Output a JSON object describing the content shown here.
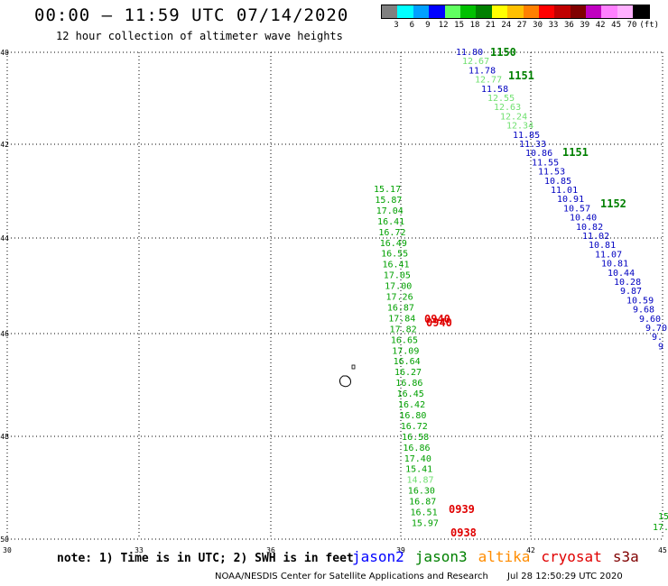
{
  "header": {
    "title": "00:00 – 11:59 UTC 07/14/2020",
    "subtitle": "12 hour collection of altimeter wave heights"
  },
  "color_scale": {
    "colors": [
      "#808080",
      "#00ffff",
      "#00a0ff",
      "#0000ff",
      "#60ff60",
      "#00c000",
      "#008000",
      "#ffff00",
      "#ffc000",
      "#ff8000",
      "#ff0000",
      "#c00000",
      "#800000",
      "#c000c0",
      "#ff80ff",
      "#ffb0ff",
      "#000000"
    ],
    "labels": [
      "3",
      "6",
      "9",
      "12",
      "15",
      "18",
      "21",
      "24",
      "27",
      "30",
      "33",
      "36",
      "39",
      "42",
      "45",
      "70",
      "(ft)"
    ]
  },
  "map": {
    "lat_labels": [
      "-40",
      "-42",
      "-44",
      "-46",
      "-48",
      "-50"
    ],
    "lon_labels": [
      "30",
      "33",
      "36",
      "39",
      "42",
      "45"
    ],
    "tracks": [
      {
        "satellite": "jason3",
        "color": "#00a000",
        "light": "#70e070",
        "time_labels": [
          {
            "text": "1150"
          },
          {
            "text": "1151"
          },
          {
            "text": "1151"
          },
          {
            "text": "1152"
          }
        ]
      },
      {
        "satellite": "jason2",
        "color": "#0000c0"
      },
      {
        "satellite": "s3a",
        "color": "#e00000",
        "time_labels": [
          {
            "text": "0940"
          },
          {
            "text": "0940"
          },
          {
            "text": "0939"
          },
          {
            "text": "0938"
          }
        ]
      }
    ],
    "east_track_values": [
      {
        "v": "11.80",
        "c": "b"
      },
      {
        "v": "12.67",
        "c": "l"
      },
      {
        "v": "11.78",
        "c": "b"
      },
      {
        "v": "12.77",
        "c": "l"
      },
      {
        "v": "11.58",
        "c": "b"
      },
      {
        "v": "12.55",
        "c": "l"
      },
      {
        "v": "12.63",
        "c": "l"
      },
      {
        "v": "12.24",
        "c": "l"
      },
      {
        "v": "12.34",
        "c": "l"
      },
      {
        "v": "11.85",
        "c": "b"
      },
      {
        "v": "11.33",
        "c": "b"
      },
      {
        "v": "10.86",
        "c": "b"
      },
      {
        "v": "11.55",
        "c": "b"
      },
      {
        "v": "11.53",
        "c": "b"
      },
      {
        "v": "10.85",
        "c": "b"
      },
      {
        "v": "11.01",
        "c": "b"
      },
      {
        "v": "10.91",
        "c": "b"
      },
      {
        "v": "10.57",
        "c": "b"
      },
      {
        "v": "10.40",
        "c": "b"
      },
      {
        "v": "10.82",
        "c": "b"
      },
      {
        "v": "11.02",
        "c": "b"
      },
      {
        "v": "10.81",
        "c": "b"
      },
      {
        "v": "11.07",
        "c": "b"
      },
      {
        "v": "10.81",
        "c": "b"
      },
      {
        "v": "10.44",
        "c": "b"
      },
      {
        "v": "10.28",
        "c": "b"
      },
      {
        "v": "9.87",
        "c": "b"
      },
      {
        "v": "10.59",
        "c": "b"
      },
      {
        "v": "9.68",
        "c": "b"
      },
      {
        "v": "9.60",
        "c": "b"
      },
      {
        "v": "9.70",
        "c": "b"
      },
      {
        "v": "9.",
        "c": "b"
      },
      {
        "v": "9",
        "c": "b"
      }
    ],
    "west_track_values": [
      {
        "v": "15.17",
        "c": "g"
      },
      {
        "v": "15.87",
        "c": "g"
      },
      {
        "v": "17.04",
        "c": "g"
      },
      {
        "v": "16.41",
        "c": "g"
      },
      {
        "v": "16.72",
        "c": "g"
      },
      {
        "v": "16.49",
        "c": "g"
      },
      {
        "v": "16.55",
        "c": "g"
      },
      {
        "v": "16.41",
        "c": "g"
      },
      {
        "v": "17.05",
        "c": "g"
      },
      {
        "v": "17.00",
        "c": "g"
      },
      {
        "v": "17.26",
        "c": "g"
      },
      {
        "v": "16.87",
        "c": "g"
      },
      {
        "v": "17.84",
        "c": "g"
      },
      {
        "v": "17.82",
        "c": "g"
      },
      {
        "v": "16.65",
        "c": "g"
      },
      {
        "v": "17.09",
        "c": "g"
      },
      {
        "v": "16.64",
        "c": "g"
      },
      {
        "v": "16.27",
        "c": "g"
      },
      {
        "v": "16.86",
        "c": "g"
      },
      {
        "v": "16.45",
        "c": "g"
      },
      {
        "v": "16.42",
        "c": "g"
      },
      {
        "v": "16.80",
        "c": "g"
      },
      {
        "v": "16.72",
        "c": "g"
      },
      {
        "v": "16.58",
        "c": "g"
      },
      {
        "v": "16.86",
        "c": "g"
      },
      {
        "v": "17.40",
        "c": "g"
      },
      {
        "v": "15.41",
        "c": "g"
      },
      {
        "v": "14.87",
        "c": "l"
      },
      {
        "v": "16.30",
        "c": "g"
      },
      {
        "v": "16.87",
        "c": "g"
      },
      {
        "v": "16.51",
        "c": "g"
      },
      {
        "v": "15.97",
        "c": "g"
      }
    ],
    "edge_values": [
      {
        "v": "15",
        "c": "g"
      },
      {
        "v": "17.",
        "c": "g"
      }
    ]
  },
  "note": "note: 1) Time is in UTC; 2) SWH is in feet",
  "satellites": [
    {
      "name": "jason2",
      "color": "#0000ff"
    },
    {
      "name": "jason3",
      "color": "#008000"
    },
    {
      "name": "altika",
      "color": "#ff8c00"
    },
    {
      "name": "cryosat",
      "color": "#e00000"
    },
    {
      "name": "s3a",
      "color": "#800000"
    }
  ],
  "footer": {
    "org": "NOAA/NESDIS Center for Satellite Applications and Research",
    "timestamp": "Jul 28 12:50:29 UTC 2020"
  }
}
